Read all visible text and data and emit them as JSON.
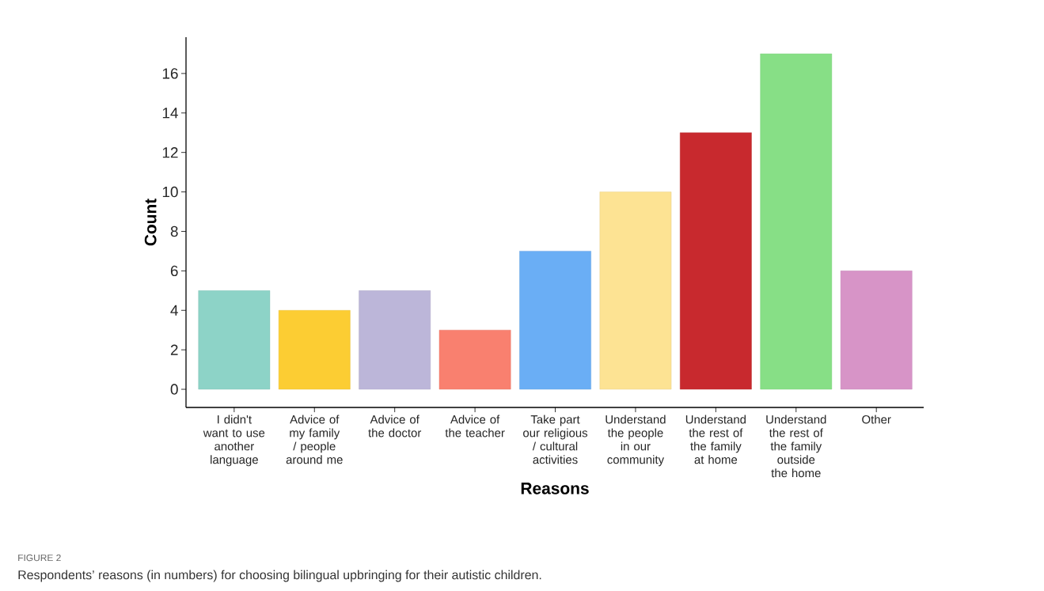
{
  "chart_data": {
    "type": "bar",
    "categories": [
      "I didn't want to use another language",
      "Advice of my family / people around me",
      "Advice of the doctor",
      "Advice of the teacher",
      "Take part our religious / cultural activities",
      "Understand the people in our community",
      "Understand the rest of the family at home",
      "Understand the rest of the family outside the home",
      "Other"
    ],
    "values": [
      5,
      4,
      5,
      3,
      7,
      10,
      13,
      17,
      6
    ],
    "colors": [
      "#8dd3c7",
      "#fccd33",
      "#bcb6d9",
      "#f9806f",
      "#6aaef5",
      "#fde393",
      "#c8292e",
      "#87df86",
      "#d794c7"
    ],
    "xlabel": "Reasons",
    "ylabel": "Count",
    "ylim": [
      -0.92,
      17.84
    ],
    "yticks": [
      0,
      2,
      4,
      6,
      8,
      10,
      12,
      14,
      16
    ],
    "annotations": [
      "FIGURE 2",
      "Respondents’ reasons (in numbers) for choosing bilingual upbringing for their autistic children."
    ]
  }
}
